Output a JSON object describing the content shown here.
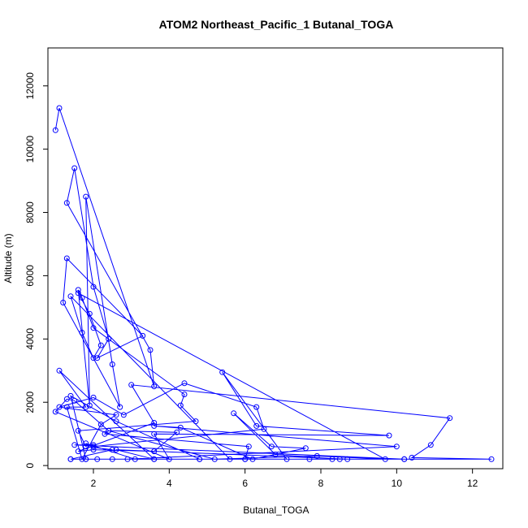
{
  "chart_data": {
    "type": "scatter",
    "title": "ATOM2 Northeast_Pacific_1 Butanal_TOGA",
    "xlabel": "Butanal_TOGA",
    "ylabel": "Altitude (m)",
    "xlim": [
      0.8,
      12.8
    ],
    "ylim": [
      -100,
      13200
    ],
    "x_ticks": [
      2,
      4,
      6,
      8,
      10,
      12
    ],
    "y_ticks": [
      0,
      2000,
      4000,
      6000,
      8000,
      10000,
      12000
    ],
    "connected": true,
    "color": "#0000ff",
    "points": [
      [
        1.0,
        10600
      ],
      [
        1.1,
        11300
      ],
      [
        3.6,
        2500
      ],
      [
        3.5,
        3650
      ],
      [
        1.3,
        8300
      ],
      [
        1.5,
        9400
      ],
      [
        2.0,
        5650
      ],
      [
        2.4,
        4000
      ],
      [
        2.1,
        3400
      ],
      [
        3.3,
        4100
      ],
      [
        1.3,
        6550
      ],
      [
        1.2,
        5150
      ],
      [
        2.7,
        1850
      ],
      [
        2.5,
        3200
      ],
      [
        1.8,
        8500
      ],
      [
        1.9,
        1900
      ],
      [
        1.6,
        5550
      ],
      [
        1.7,
        5300
      ],
      [
        2.0,
        4350
      ],
      [
        4.4,
        2250
      ],
      [
        4.3,
        1900
      ],
      [
        4.7,
        1400
      ],
      [
        1.6,
        1100
      ],
      [
        1.8,
        600
      ],
      [
        2.5,
        500
      ],
      [
        1.4,
        200
      ],
      [
        1.8,
        200
      ],
      [
        3.6,
        200
      ],
      [
        1.1,
        3000
      ],
      [
        1.8,
        1850
      ],
      [
        1.3,
        1850
      ],
      [
        1.7,
        200
      ],
      [
        2.2,
        1300
      ],
      [
        2.6,
        1600
      ],
      [
        1.1,
        1850
      ],
      [
        2.0,
        2150
      ],
      [
        2.8,
        1600
      ],
      [
        4.4,
        2600
      ],
      [
        6.3,
        1850
      ],
      [
        6.5,
        1150
      ],
      [
        2.0,
        600
      ],
      [
        1.8,
        700
      ],
      [
        3.1,
        200
      ],
      [
        4.8,
        200
      ],
      [
        7.1,
        200
      ],
      [
        5.4,
        2950
      ],
      [
        6.3,
        1250
      ],
      [
        9.8,
        950
      ],
      [
        3.6,
        1000
      ],
      [
        4.0,
        200
      ],
      [
        1.0,
        1700
      ],
      [
        1.3,
        2100
      ],
      [
        1.5,
        2050
      ],
      [
        2.4,
        1100
      ],
      [
        4.2,
        1050
      ],
      [
        3.6,
        450
      ],
      [
        2.0,
        500
      ],
      [
        1.6,
        450
      ],
      [
        3.6,
        1350
      ],
      [
        3.0,
        2550
      ],
      [
        11.4,
        1500
      ],
      [
        10.9,
        650
      ],
      [
        10.4,
        250
      ],
      [
        12.5,
        200
      ],
      [
        7.7,
        200
      ],
      [
        1.4,
        200
      ],
      [
        2.1,
        200
      ],
      [
        10.2,
        200
      ],
      [
        8.5,
        200
      ],
      [
        6.8,
        350
      ],
      [
        5.7,
        1650
      ],
      [
        6.7,
        600
      ],
      [
        7.6,
        550
      ],
      [
        6.2,
        200
      ],
      [
        4.3,
        1200
      ],
      [
        3.6,
        1250
      ],
      [
        10.0,
        600
      ],
      [
        2.9,
        200
      ],
      [
        2.5,
        200
      ],
      [
        1.8,
        200
      ],
      [
        1.4,
        2200
      ],
      [
        2.6,
        1400
      ],
      [
        4.8,
        200
      ],
      [
        6.0,
        200
      ],
      [
        6.1,
        600
      ],
      [
        2.3,
        1000
      ],
      [
        2.4,
        1100
      ],
      [
        5.2,
        200
      ],
      [
        7.9,
        300
      ],
      [
        9.7,
        200
      ],
      [
        1.6,
        5450
      ],
      [
        1.9,
        4800
      ],
      [
        2.2,
        3800
      ],
      [
        2.0,
        3400
      ],
      [
        1.7,
        4200
      ],
      [
        1.4,
        5350
      ],
      [
        5.6,
        200
      ],
      [
        8.3,
        200
      ],
      [
        8.7,
        200
      ],
      [
        2.6,
        500
      ],
      [
        3.6,
        200
      ],
      [
        6.0,
        200
      ],
      [
        10.2,
        200
      ],
      [
        1.5,
        650
      ],
      [
        2.0,
        650
      ]
    ]
  }
}
